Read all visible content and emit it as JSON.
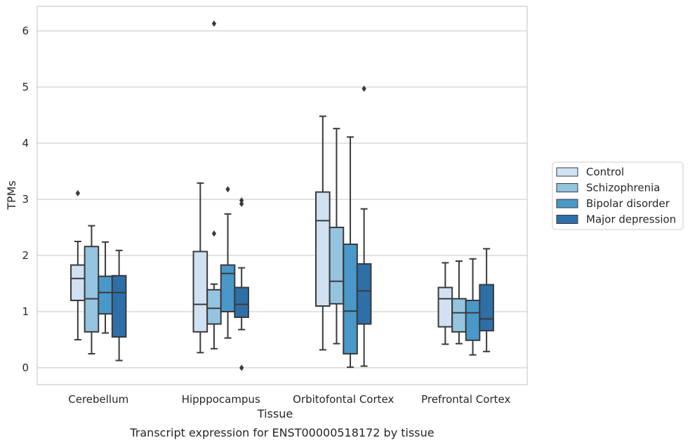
{
  "chart_data": {
    "type": "box",
    "xlabel": "Tissue",
    "ylabel": "TPMs",
    "caption": "Transcript expression for ENST00000518172 by tissue",
    "ylim": [
      -0.3,
      6.45
    ],
    "yticks": [
      0,
      1,
      2,
      3,
      4,
      5,
      6
    ],
    "grid": "horizontal",
    "legend_position": "right",
    "categories": [
      "Cerebellum",
      "Hipppocampus",
      "Orbitofontal Cortex",
      "Prefrontal Cortex"
    ],
    "series": [
      {
        "name": "Control",
        "color": "#d0e1f2",
        "boxes": [
          {
            "whisker_low": 0.5,
            "q1": 1.2,
            "median": 1.59,
            "q3": 1.83,
            "whisker_high": 2.25,
            "outliers": [
              3.11
            ]
          },
          {
            "whisker_low": 0.27,
            "q1": 0.64,
            "median": 1.13,
            "q3": 2.07,
            "whisker_high": 3.29,
            "outliers": []
          },
          {
            "whisker_low": 0.32,
            "q1": 1.1,
            "median": 2.62,
            "q3": 3.13,
            "whisker_high": 4.48,
            "outliers": []
          },
          {
            "whisker_low": 0.42,
            "q1": 0.73,
            "median": 1.23,
            "q3": 1.43,
            "whisker_high": 1.87,
            "outliers": []
          }
        ]
      },
      {
        "name": "Schizophrenia",
        "color": "#94c4df",
        "boxes": [
          {
            "whisker_low": 0.25,
            "q1": 0.64,
            "median": 1.23,
            "q3": 2.16,
            "whisker_high": 2.53,
            "outliers": []
          },
          {
            "whisker_low": 0.34,
            "q1": 0.78,
            "median": 1.06,
            "q3": 1.39,
            "whisker_high": 1.49,
            "outliers": [
              2.39,
              6.13
            ]
          },
          {
            "whisker_low": 0.43,
            "q1": 1.14,
            "median": 1.54,
            "q3": 2.5,
            "whisker_high": 4.26,
            "outliers": []
          },
          {
            "whisker_low": 0.43,
            "q1": 0.64,
            "median": 0.98,
            "q3": 1.23,
            "whisker_high": 1.9,
            "outliers": []
          }
        ]
      },
      {
        "name": "Bipolar disorder",
        "color": "#4a98c9",
        "boxes": [
          {
            "whisker_low": 0.62,
            "q1": 0.96,
            "median": 1.34,
            "q3": 1.63,
            "whisker_high": 2.24,
            "outliers": []
          },
          {
            "whisker_low": 0.53,
            "q1": 1.0,
            "median": 1.68,
            "q3": 1.83,
            "whisker_high": 2.74,
            "outliers": [
              3.18
            ]
          },
          {
            "whisker_low": 0.01,
            "q1": 0.25,
            "median": 1.01,
            "q3": 2.2,
            "whisker_high": 4.11,
            "outliers": []
          },
          {
            "whisker_low": 0.23,
            "q1": 0.49,
            "median": 0.98,
            "q3": 1.2,
            "whisker_high": 1.94,
            "outliers": []
          }
        ]
      },
      {
        "name": "Major depression",
        "color": "#2e6fa8",
        "boxes": [
          {
            "whisker_low": 0.13,
            "q1": 0.55,
            "median": 1.34,
            "q3": 1.64,
            "whisker_high": 2.09,
            "outliers": []
          },
          {
            "whisker_low": 0.68,
            "q1": 0.9,
            "median": 1.13,
            "q3": 1.43,
            "whisker_high": 1.78,
            "outliers": [
              2.92,
              2.98,
              0.0
            ]
          },
          {
            "whisker_low": 0.03,
            "q1": 0.78,
            "median": 1.37,
            "q3": 1.85,
            "whisker_high": 2.83,
            "outliers": [
              4.97
            ]
          },
          {
            "whisker_low": 0.29,
            "q1": 0.66,
            "median": 0.87,
            "q3": 1.48,
            "whisker_high": 2.12,
            "outliers": []
          }
        ]
      }
    ]
  }
}
